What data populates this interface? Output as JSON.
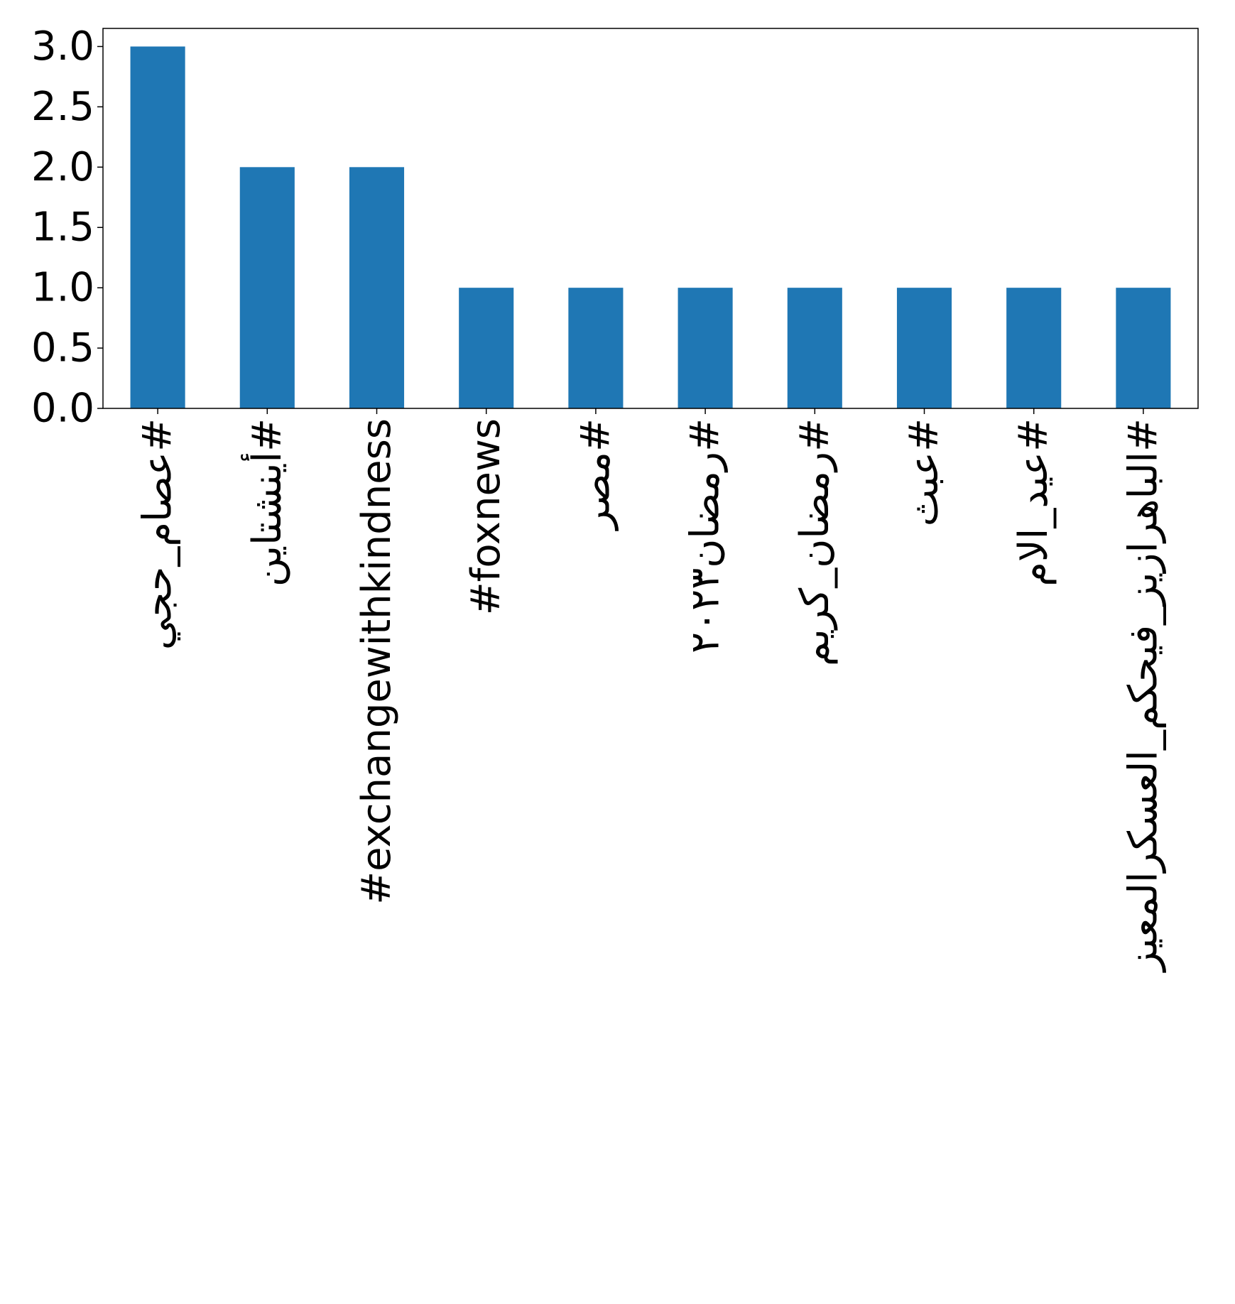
{
  "chart_data": {
    "type": "bar",
    "categories": [
      "#عصام_حجي",
      "#أينشتاين",
      "#exchangewithkindness",
      "#foxnews",
      "#مصر",
      "#رمضان٢٠٢٣",
      "#رمضان_كريم",
      "#عبث",
      "#عيد_الام",
      "#الباهرازيز_فيحكم_العسكرالمعيز"
    ],
    "values": [
      3,
      2,
      2,
      1,
      1,
      1,
      1,
      1,
      1,
      1
    ],
    "ylim": [
      0,
      3.15
    ],
    "yticks": [
      "0.0",
      "0.5",
      "1.0",
      "1.5",
      "2.0",
      "2.5",
      "3.0"
    ],
    "bar_color": "#1f77b4",
    "grid": false,
    "legend": "none"
  }
}
